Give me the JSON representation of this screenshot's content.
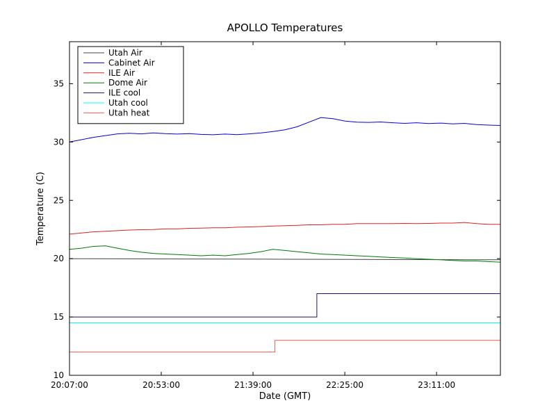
{
  "chart_data": {
    "type": "line",
    "title": "APOLLO Temperatures",
    "xlabel": "Date (GMT)",
    "ylabel": "Temperature (C)",
    "grid": false,
    "legend_position": "upper-left",
    "x_unit": "minutes after 20:07:00 GMT",
    "xlim": [
      0,
      216
    ],
    "ylim": [
      10,
      38.6
    ],
    "y_ticks": [
      10,
      15,
      20,
      25,
      30,
      35
    ],
    "x_ticks": [
      {
        "minutes": 0,
        "label": "20:07:00"
      },
      {
        "minutes": 46,
        "label": "20:53:00"
      },
      {
        "minutes": 92,
        "label": "21:39:00"
      },
      {
        "minutes": 138,
        "label": "22:25:00"
      },
      {
        "minutes": 184,
        "label": "23:11:00"
      }
    ],
    "series": [
      {
        "name": "Utah Air",
        "color": "#444444",
        "points": [
          [
            0,
            20.0
          ],
          [
            108,
            19.95
          ],
          [
            216,
            19.9
          ]
        ]
      },
      {
        "name": "Cabinet Air",
        "color": "#0000dd",
        "points": [
          [
            0,
            30.0
          ],
          [
            6,
            30.2
          ],
          [
            12,
            30.4
          ],
          [
            18,
            30.55
          ],
          [
            24,
            30.7
          ],
          [
            30,
            30.75
          ],
          [
            36,
            30.7
          ],
          [
            42,
            30.78
          ],
          [
            48,
            30.72
          ],
          [
            54,
            30.68
          ],
          [
            60,
            30.72
          ],
          [
            66,
            30.65
          ],
          [
            72,
            30.62
          ],
          [
            78,
            30.68
          ],
          [
            84,
            30.63
          ],
          [
            90,
            30.7
          ],
          [
            96,
            30.78
          ],
          [
            102,
            30.9
          ],
          [
            108,
            31.05
          ],
          [
            114,
            31.3
          ],
          [
            120,
            31.7
          ],
          [
            126,
            32.1
          ],
          [
            132,
            32.0
          ],
          [
            138,
            31.8
          ],
          [
            144,
            31.7
          ],
          [
            150,
            31.68
          ],
          [
            156,
            31.72
          ],
          [
            162,
            31.65
          ],
          [
            168,
            31.6
          ],
          [
            174,
            31.65
          ],
          [
            180,
            31.58
          ],
          [
            186,
            31.62
          ],
          [
            192,
            31.55
          ],
          [
            198,
            31.6
          ],
          [
            204,
            31.5
          ],
          [
            210,
            31.45
          ],
          [
            216,
            31.42
          ]
        ]
      },
      {
        "name": "ILE Air",
        "color": "#e02020",
        "points": [
          [
            0,
            22.1
          ],
          [
            6,
            22.2
          ],
          [
            12,
            22.3
          ],
          [
            18,
            22.35
          ],
          [
            24,
            22.4
          ],
          [
            30,
            22.45
          ],
          [
            36,
            22.48
          ],
          [
            42,
            22.5
          ],
          [
            48,
            22.55
          ],
          [
            54,
            22.55
          ],
          [
            60,
            22.6
          ],
          [
            66,
            22.62
          ],
          [
            72,
            22.65
          ],
          [
            78,
            22.65
          ],
          [
            84,
            22.7
          ],
          [
            90,
            22.72
          ],
          [
            96,
            22.75
          ],
          [
            102,
            22.8
          ],
          [
            108,
            22.82
          ],
          [
            114,
            22.85
          ],
          [
            120,
            22.9
          ],
          [
            126,
            22.9
          ],
          [
            132,
            22.95
          ],
          [
            138,
            22.95
          ],
          [
            144,
            23.0
          ],
          [
            150,
            23.0
          ],
          [
            156,
            23.0
          ],
          [
            162,
            23.0
          ],
          [
            168,
            23.02
          ],
          [
            174,
            23.0
          ],
          [
            180,
            23.02
          ],
          [
            186,
            23.05
          ],
          [
            192,
            23.05
          ],
          [
            198,
            23.1
          ],
          [
            204,
            23.0
          ],
          [
            210,
            22.95
          ],
          [
            216,
            22.95
          ]
        ]
      },
      {
        "name": "Dome Air",
        "color": "#007a00",
        "points": [
          [
            0,
            20.8
          ],
          [
            6,
            20.9
          ],
          [
            12,
            21.05
          ],
          [
            18,
            21.1
          ],
          [
            24,
            20.9
          ],
          [
            30,
            20.7
          ],
          [
            36,
            20.55
          ],
          [
            42,
            20.45
          ],
          [
            48,
            20.4
          ],
          [
            54,
            20.35
          ],
          [
            60,
            20.3
          ],
          [
            66,
            20.25
          ],
          [
            72,
            20.3
          ],
          [
            78,
            20.25
          ],
          [
            84,
            20.35
          ],
          [
            90,
            20.45
          ],
          [
            96,
            20.6
          ],
          [
            102,
            20.8
          ],
          [
            108,
            20.7
          ],
          [
            114,
            20.6
          ],
          [
            120,
            20.5
          ],
          [
            126,
            20.4
          ],
          [
            132,
            20.35
          ],
          [
            138,
            20.3
          ],
          [
            144,
            20.25
          ],
          [
            150,
            20.2
          ],
          [
            156,
            20.15
          ],
          [
            162,
            20.1
          ],
          [
            168,
            20.05
          ],
          [
            174,
            20.0
          ],
          [
            180,
            19.95
          ],
          [
            186,
            19.9
          ],
          [
            192,
            19.85
          ],
          [
            198,
            19.8
          ],
          [
            204,
            19.8
          ],
          [
            210,
            19.75
          ],
          [
            216,
            19.7
          ]
        ]
      },
      {
        "name": "ILE cool",
        "color": "#151578",
        "points": [
          [
            0,
            15.0
          ],
          [
            124,
            15.0
          ],
          [
            124,
            17.0
          ],
          [
            216,
            17.0
          ]
        ]
      },
      {
        "name": "Utah cool",
        "color": "#00ffff",
        "points": [
          [
            0,
            14.5
          ],
          [
            216,
            14.5
          ]
        ]
      },
      {
        "name": "Utah heat",
        "color": "#ff5555",
        "points": [
          [
            0,
            12.0
          ],
          [
            103,
            12.0
          ],
          [
            103,
            13.0
          ],
          [
            216,
            13.0
          ]
        ]
      }
    ]
  }
}
